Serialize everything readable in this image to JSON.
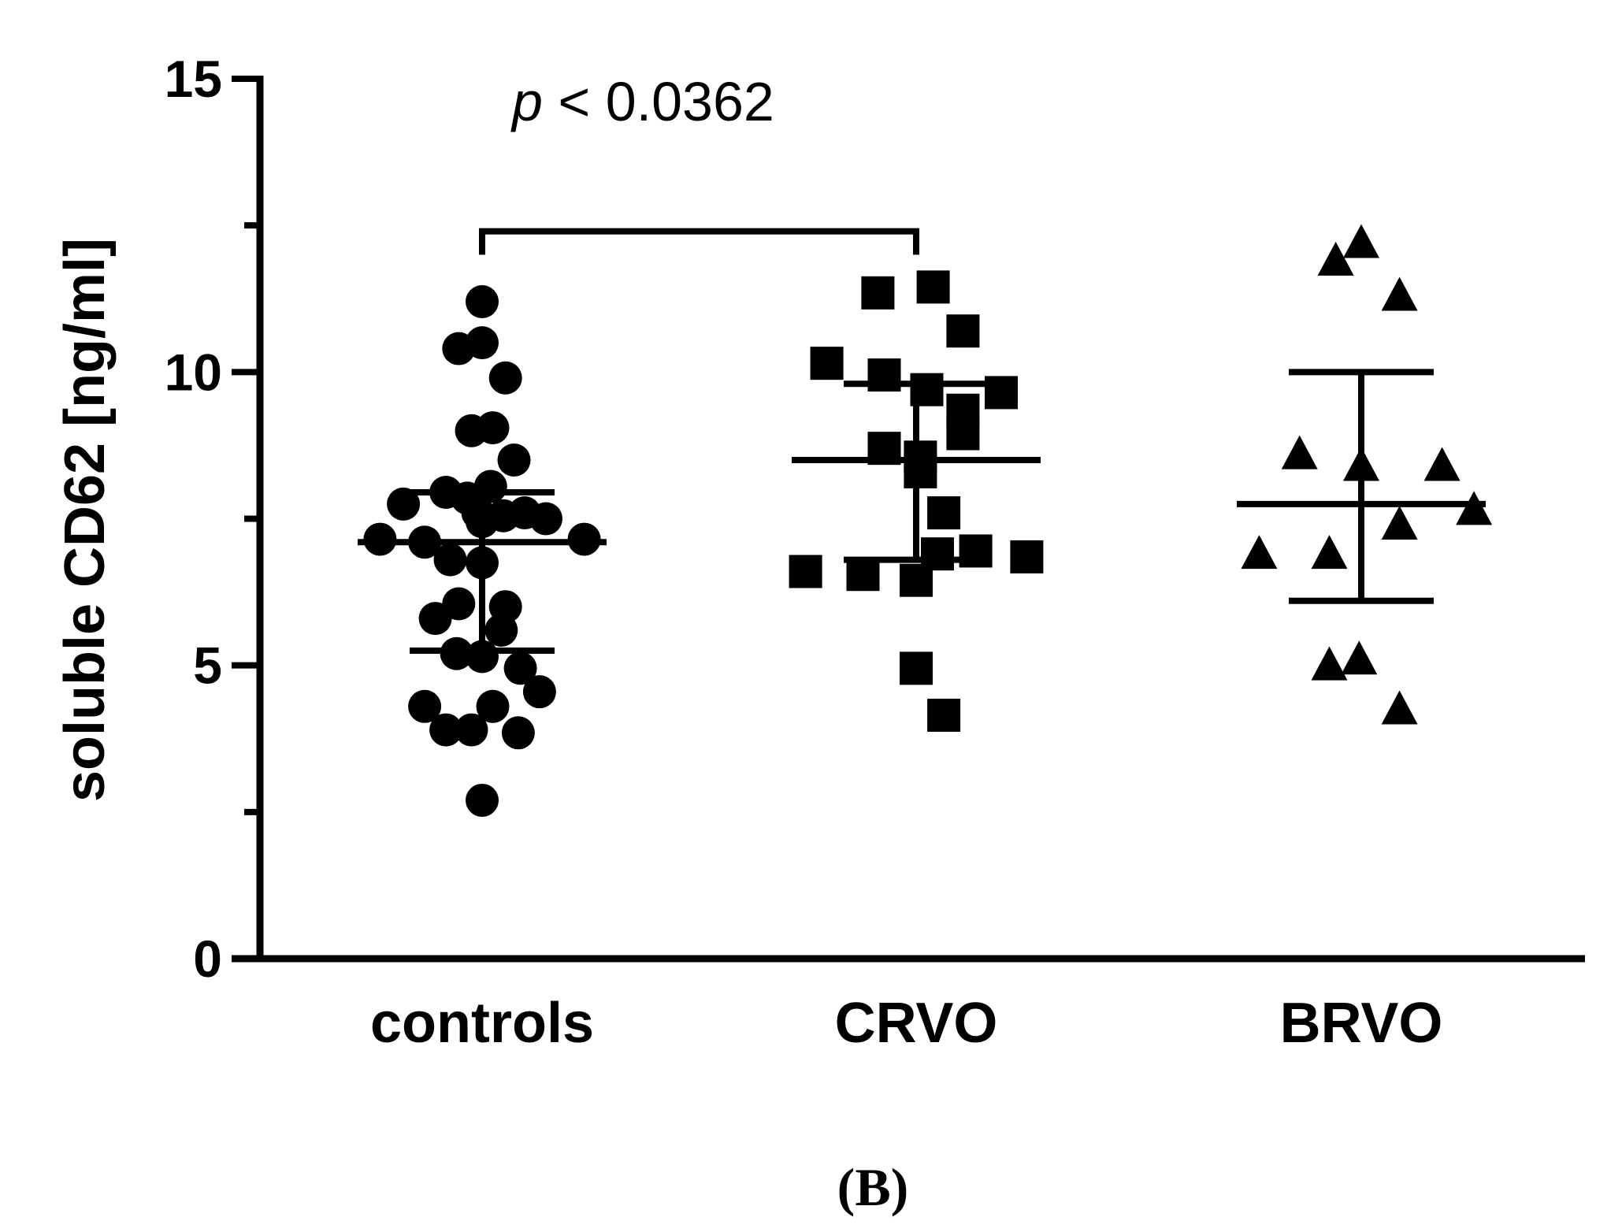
{
  "chart_data": {
    "type": "scatter",
    "title": "",
    "xlabel": "",
    "ylabel": "soluble CD62 [ng/ml]",
    "ylim": [
      0,
      15
    ],
    "yticks_major": [
      0,
      5,
      10,
      15
    ],
    "yticks_minor": [
      2.5,
      7.5,
      12.5
    ],
    "categories": [
      "controls",
      "CRVO",
      "BRVO"
    ],
    "panel_label": "(B)",
    "annotation": {
      "p_symbol": "p",
      "p_text": " < 0.0362",
      "between": [
        "controls",
        "CRVO"
      ],
      "bracket_y": 12.4,
      "bracket_drop": 12.0
    },
    "series": [
      {
        "name": "controls",
        "marker": "circle",
        "mean": 7.1,
        "sd_upper": 7.95,
        "sd_lower": 5.25,
        "points": [
          {
            "dx": 0.0,
            "y": 11.2
          },
          {
            "dx": -0.11,
            "y": 10.4
          },
          {
            "dx": 0.0,
            "y": 10.5
          },
          {
            "dx": 0.11,
            "y": 9.9
          },
          {
            "dx": -0.05,
            "y": 9.0
          },
          {
            "dx": 0.05,
            "y": 9.05
          },
          {
            "dx": 0.15,
            "y": 8.5
          },
          {
            "dx": -0.17,
            "y": 7.95
          },
          {
            "dx": -0.07,
            "y": 7.85
          },
          {
            "dx": 0.04,
            "y": 8.05
          },
          {
            "dx": -0.37,
            "y": 7.75
          },
          {
            "dx": -0.02,
            "y": 7.6
          },
          {
            "dx": 0.1,
            "y": 7.55
          },
          {
            "dx": 0.2,
            "y": 7.6
          },
          {
            "dx": 0.3,
            "y": 7.5
          },
          {
            "dx": 0.0,
            "y": 7.45
          },
          {
            "dx": -0.48,
            "y": 7.15
          },
          {
            "dx": -0.27,
            "y": 7.1
          },
          {
            "dx": 0.48,
            "y": 7.15
          },
          {
            "dx": -0.15,
            "y": 6.8
          },
          {
            "dx": 0.0,
            "y": 6.75
          },
          {
            "dx": -0.11,
            "y": 6.05
          },
          {
            "dx": 0.11,
            "y": 6.0
          },
          {
            "dx": -0.22,
            "y": 5.8
          },
          {
            "dx": 0.09,
            "y": 5.6
          },
          {
            "dx": -0.12,
            "y": 5.2
          },
          {
            "dx": 0.0,
            "y": 5.15
          },
          {
            "dx": 0.18,
            "y": 4.95
          },
          {
            "dx": 0.27,
            "y": 4.55
          },
          {
            "dx": -0.27,
            "y": 4.3
          },
          {
            "dx": 0.05,
            "y": 4.3
          },
          {
            "dx": -0.17,
            "y": 3.9
          },
          {
            "dx": -0.05,
            "y": 3.9
          },
          {
            "dx": 0.17,
            "y": 3.85
          },
          {
            "dx": 0.0,
            "y": 2.7
          }
        ]
      },
      {
        "name": "CRVO",
        "marker": "square",
        "mean": 8.5,
        "sd_upper": 9.8,
        "sd_lower": 6.8,
        "points": [
          {
            "dx": -0.18,
            "y": 11.35
          },
          {
            "dx": 0.08,
            "y": 11.45
          },
          {
            "dx": 0.22,
            "y": 10.7
          },
          {
            "dx": -0.42,
            "y": 10.15
          },
          {
            "dx": -0.15,
            "y": 9.95
          },
          {
            "dx": 0.05,
            "y": 9.7
          },
          {
            "dx": 0.22,
            "y": 9.35
          },
          {
            "dx": 0.4,
            "y": 9.65
          },
          {
            "dx": 0.22,
            "y": 8.95
          },
          {
            "dx": -0.15,
            "y": 8.7
          },
          {
            "dx": 0.02,
            "y": 8.55
          },
          {
            "dx": 0.02,
            "y": 8.3
          },
          {
            "dx": 0.13,
            "y": 7.6
          },
          {
            "dx": 0.1,
            "y": 6.9
          },
          {
            "dx": 0.28,
            "y": 6.95
          },
          {
            "dx": 0.52,
            "y": 6.85
          },
          {
            "dx": -0.52,
            "y": 6.6
          },
          {
            "dx": -0.25,
            "y": 6.55
          },
          {
            "dx": 0.0,
            "y": 6.45
          },
          {
            "dx": 0.0,
            "y": 4.95
          },
          {
            "dx": 0.13,
            "y": 4.15
          }
        ]
      },
      {
        "name": "BRVO",
        "marker": "triangle",
        "mean": 7.75,
        "sd_upper": 10.0,
        "sd_lower": 6.1,
        "points": [
          {
            "dx": -0.12,
            "y": 11.9
          },
          {
            "dx": 0.0,
            "y": 12.2
          },
          {
            "dx": 0.18,
            "y": 11.3
          },
          {
            "dx": -0.29,
            "y": 8.6
          },
          {
            "dx": 0.0,
            "y": 8.4
          },
          {
            "dx": 0.38,
            "y": 8.4
          },
          {
            "dx": 0.53,
            "y": 7.65
          },
          {
            "dx": 0.18,
            "y": 7.4
          },
          {
            "dx": -0.48,
            "y": 6.9
          },
          {
            "dx": -0.15,
            "y": 6.9
          },
          {
            "dx": -0.15,
            "y": 5.0
          },
          {
            "dx": -0.01,
            "y": 5.1
          },
          {
            "dx": 0.18,
            "y": 4.25
          }
        ]
      }
    ]
  }
}
